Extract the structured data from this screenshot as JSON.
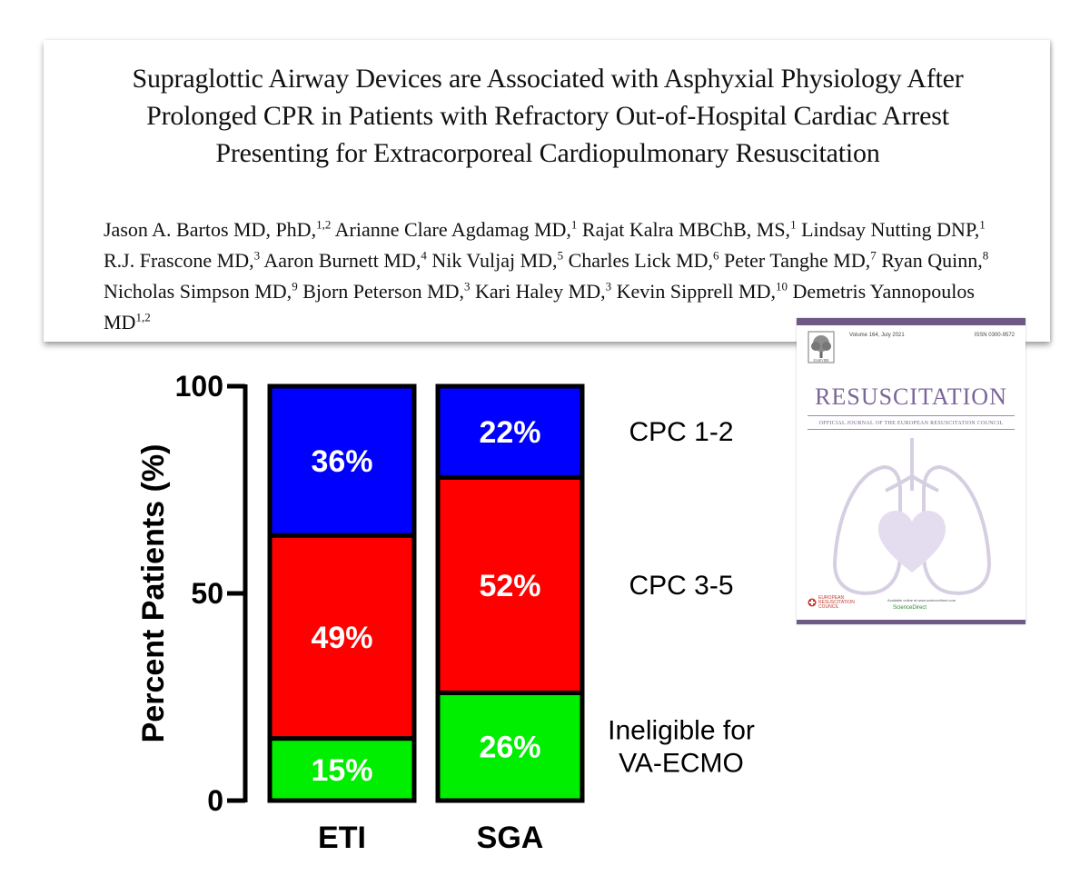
{
  "paper": {
    "title": "Supraglottic Airway Devices are Associated with Asphyxial Physiology After Prolonged CPR in Patients with Refractory Out-of-Hospital Cardiac Arrest Presenting for Extracorporeal Cardiopulmonary Resuscitation",
    "authors": [
      {
        "name": "Jason A. Bartos MD, PhD,",
        "aff": "1,2"
      },
      {
        "name": "Arianne Clare Agdamag MD,",
        "aff": "1"
      },
      {
        "name": "Rajat Kalra MBChB, MS,",
        "aff": "1"
      },
      {
        "name": "Lindsay Nutting DNP,",
        "aff": "1"
      },
      {
        "name": "R.J. Frascone MD,",
        "aff": "3"
      },
      {
        "name": "Aaron Burnett MD,",
        "aff": "4"
      },
      {
        "name": "Nik Vuljaj MD,",
        "aff": "5"
      },
      {
        "name": "Charles Lick MD,",
        "aff": "6"
      },
      {
        "name": "Peter Tanghe MD,",
        "aff": "7"
      },
      {
        "name": "Ryan Quinn,",
        "aff": "8"
      },
      {
        "name": "Nicholas Simpson MD,",
        "aff": "9"
      },
      {
        "name": "Bjorn Peterson MD,",
        "aff": "3"
      },
      {
        "name": "Kari Haley MD,",
        "aff": "3"
      },
      {
        "name": "Kevin Sipprell MD,",
        "aff": "10"
      },
      {
        "name": "Demetris Yannopoulos MD",
        "aff": "1,2"
      }
    ]
  },
  "chart_data": {
    "type": "bar",
    "stacked": true,
    "title": "",
    "xlabel": "",
    "ylabel": "Percent Patients (%)",
    "ylim": [
      0,
      100
    ],
    "yticks": [
      0,
      50,
      100
    ],
    "categories": [
      "ETI",
      "SGA"
    ],
    "series": [
      {
        "name": "Ineligible for VA-ECMO",
        "color": "#00ee00",
        "values": [
          15,
          26
        ],
        "labels": [
          "15%",
          "26%"
        ]
      },
      {
        "name": "CPC 3-5",
        "color": "#ff0000",
        "values": [
          49,
          52
        ],
        "labels": [
          "49%",
          "52%"
        ]
      },
      {
        "name": "CPC 1-2",
        "color": "#0000ff",
        "values": [
          36,
          22
        ],
        "labels": [
          "36%",
          "22%"
        ]
      }
    ],
    "legend": "right"
  },
  "cover": {
    "journal": "RESUSCITATION",
    "subtitle": "OFFICIAL JOURNAL OF THE EUROPEAN RESUSCITATION COUNCIL",
    "issue": "Volume 164, July 2021",
    "issn": "ISSN 0300-9572",
    "publisher": "ELSEVIER",
    "erc": "EUROPEAN RESUSCITATION COUNCIL",
    "online": "Available online at www.sciencedirect.com",
    "sciencedirect": "ScienceDirect",
    "accent": "#7a6698"
  }
}
